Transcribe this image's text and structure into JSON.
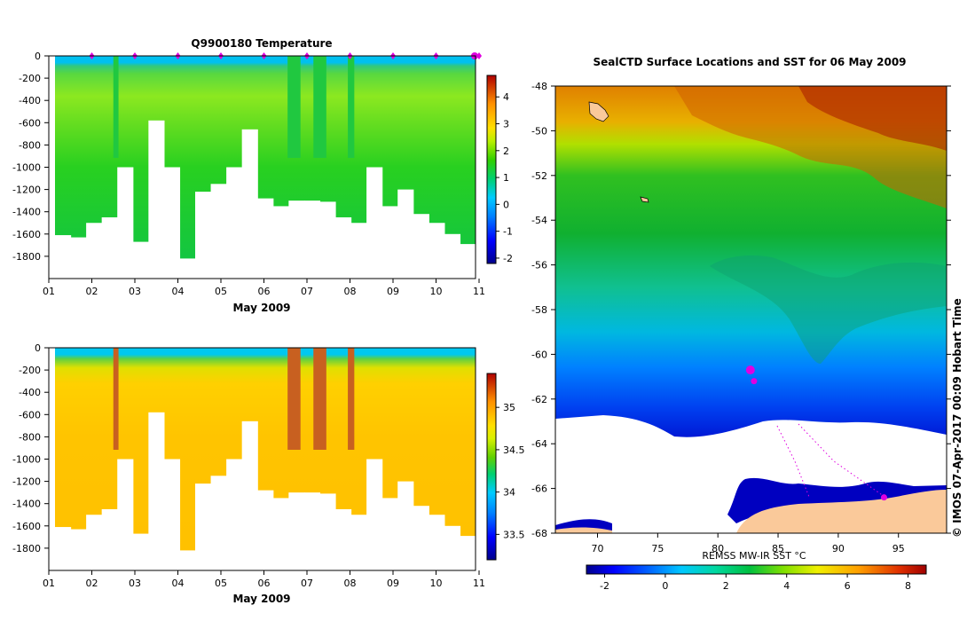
{
  "chart_data": [
    {
      "type": "heatmap",
      "title": "Q9900180  Temperature",
      "xlabel": "May 2009",
      "ylabel": "",
      "x_ticks": [
        "01",
        "02",
        "03",
        "04",
        "05",
        "06",
        "07",
        "08",
        "09",
        "10",
        "11"
      ],
      "y_ticks": [
        0,
        -200,
        -400,
        -600,
        -800,
        -1000,
        -1200,
        -1400,
        -1600,
        -1800
      ],
      "ylim": [
        -2000,
        0
      ],
      "xlim": [
        1,
        11.1
      ],
      "colorbar": {
        "ticks": [
          4,
          3,
          2,
          1,
          0,
          -1,
          -2
        ],
        "range": [
          -2.2,
          4.8
        ]
      },
      "profile_max_depth": [
        1610,
        1630,
        1500,
        1450,
        1000,
        1670,
        580,
        1000,
        1820,
        1220,
        1150,
        1000,
        660,
        1280,
        1350,
        1300,
        1300,
        1310,
        1450,
        1500,
        1000,
        1350,
        1200,
        1420,
        1500,
        1600,
        1690
      ],
      "notches": [
        [
          2.5,
          2.62
        ],
        [
          6.55,
          6.85
        ],
        [
          7.15,
          7.45
        ],
        [
          7.95,
          8.1
        ]
      ],
      "profile_markers_x": [
        1.9,
        2.9,
        3.9,
        4.9,
        5.9,
        6.9,
        7.9,
        8.9,
        9.9,
        10.9
      ]
    },
    {
      "type": "heatmap",
      "title": "",
      "xlabel": "May 2009",
      "ylabel": "",
      "x_ticks": [
        "01",
        "02",
        "03",
        "04",
        "05",
        "06",
        "07",
        "08",
        "09",
        "10",
        "11"
      ],
      "y_ticks": [
        0,
        -200,
        -400,
        -600,
        -800,
        -1000,
        -1200,
        -1400,
        -1600,
        -1800
      ],
      "ylim": [
        -2000,
        0
      ],
      "colorbar": {
        "ticks": [
          "35",
          "34.5",
          "34",
          "33.5"
        ],
        "range": [
          33.2,
          35.4
        ]
      }
    },
    {
      "type": "heatmap",
      "title": "SealCTD Surface Locations and SST for 06 May 2009",
      "xlabel": "",
      "ylabel": "",
      "x_ticks": [
        70,
        75,
        80,
        85,
        90,
        95
      ],
      "y_ticks": [
        -48,
        -50,
        -52,
        -54,
        -56,
        -58,
        -60,
        -62,
        -64,
        -66,
        -68
      ],
      "xlim": [
        66.5,
        99
      ],
      "ylim": [
        -68,
        -48
      ],
      "colorbar": {
        "label": "REMSS MW-IR SST °C",
        "ticks": [
          -2,
          0,
          2,
          4,
          6,
          8
        ],
        "range": [
          -2.6,
          8.6
        ]
      },
      "seal_locations": [
        [
          82.7,
          -60.7
        ],
        [
          83.0,
          -61.2
        ],
        [
          93.8,
          -66.4
        ]
      ],
      "credit": "© IMOS 07-Apr-2017 00:09 Hobart Time"
    }
  ],
  "colors": {
    "white": "#ffffff",
    "land": "#fac99a",
    "marker": "#e000e0",
    "deep_blue": "#00008c"
  }
}
